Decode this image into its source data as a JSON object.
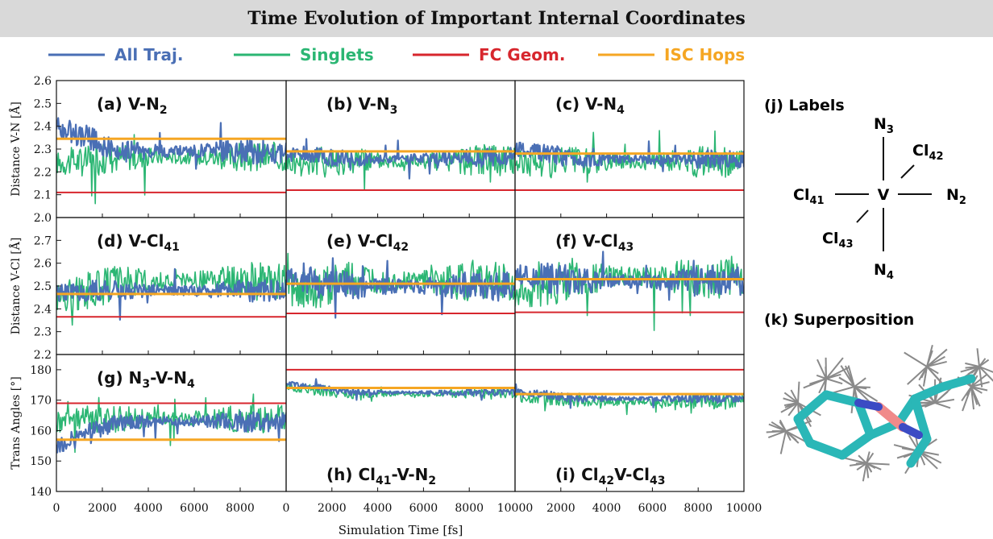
{
  "header": {
    "title": "Time Evolution of Important Internal Coordinates"
  },
  "colors": {
    "all_traj": "#4a6fb5",
    "singlets": "#2bb673",
    "fc_geom": "#d7262d",
    "isc_hops": "#f5a623"
  },
  "legend": {
    "placement": "top",
    "items": [
      {
        "key": "all_traj",
        "label": "All Traj."
      },
      {
        "key": "singlets",
        "label": "Singlets"
      },
      {
        "key": "fc_geom",
        "label": "FC Geom."
      },
      {
        "key": "isc_hops",
        "label": "ISC Hops"
      }
    ]
  },
  "x_axis": {
    "label": "Simulation Time [fs]",
    "ticks_first": [
      "0",
      "2000",
      "4000",
      "6000",
      "8000"
    ],
    "ticks_middle": [
      "0",
      "2000",
      "4000",
      "6000",
      "8000",
      "10000"
    ],
    "ticks_last": [
      "0",
      "2000",
      "4000",
      "6000",
      "8000",
      "10000"
    ],
    "range": [
      0,
      10000
    ]
  },
  "rows": [
    {
      "ylabel": "Distance V-N [Å]",
      "ylim": [
        2.0,
        2.6
      ],
      "ticks": [
        "2.0",
        "2.1",
        "2.2",
        "2.3",
        "2.4",
        "2.5",
        "2.6"
      ]
    },
    {
      "ylabel": "Distance V-Cl [Å]",
      "ylim": [
        2.2,
        2.8
      ],
      "ticks": [
        "2.2",
        "2.3",
        "2.4",
        "2.5",
        "2.6",
        "2.7"
      ]
    },
    {
      "ylabel": "Trans Angles [°]",
      "ylim": [
        140,
        185
      ],
      "ticks": [
        "140",
        "150",
        "160",
        "170",
        "180"
      ]
    }
  ],
  "chart_data": {
    "type": "line",
    "grid": false,
    "panels": [
      {
        "row": 0,
        "col": 0,
        "label": "(a) V-N",
        "sub": "2",
        "fc": 2.11,
        "isc": 2.345,
        "blue": {
          "start": 2.4,
          "decay": 2.29,
          "amp": 0.04
        },
        "green": {
          "start": 2.24,
          "decay": 2.265,
          "amp": 0.05
        }
      },
      {
        "row": 0,
        "col": 1,
        "label": "(b) V-N",
        "sub": "3",
        "fc": 2.12,
        "isc": 2.29,
        "blue": {
          "start": 2.28,
          "decay": 2.26,
          "amp": 0.03
        },
        "green": {
          "start": 2.24,
          "decay": 2.25,
          "amp": 0.05
        }
      },
      {
        "row": 0,
        "col": 2,
        "label": "(c) V-N",
        "sub": "4",
        "fc": 2.12,
        "isc": 2.28,
        "blue": {
          "start": 2.3,
          "decay": 2.255,
          "amp": 0.03
        },
        "green": {
          "start": 2.24,
          "decay": 2.245,
          "amp": 0.05
        }
      },
      {
        "row": 1,
        "col": 0,
        "label": "(d) V-Cl",
        "sub": "41",
        "fc": 2.365,
        "isc": 2.465,
        "blue": {
          "start": 2.47,
          "decay": 2.48,
          "amp": 0.035
        },
        "green": {
          "start": 2.45,
          "decay": 2.52,
          "amp": 0.06
        }
      },
      {
        "row": 1,
        "col": 1,
        "label": "(e) V-Cl",
        "sub": "42",
        "fc": 2.38,
        "isc": 2.51,
        "blue": {
          "start": 2.53,
          "decay": 2.5,
          "amp": 0.05
        },
        "green": {
          "start": 2.48,
          "decay": 2.52,
          "amp": 0.07
        }
      },
      {
        "row": 1,
        "col": 2,
        "label": "(f) V-Cl",
        "sub": "43",
        "fc": 2.385,
        "isc": 2.53,
        "blue": {
          "start": 2.55,
          "decay": 2.52,
          "amp": 0.05
        },
        "green": {
          "start": 2.47,
          "decay": 2.54,
          "amp": 0.07
        }
      },
      {
        "row": 2,
        "col": 0,
        "label": "(g) N",
        "sub": "3",
        "label2": "-V-N",
        "sub2": "4",
        "label_pos": "top",
        "fc": 169,
        "isc": 157,
        "blue": {
          "start": 155,
          "decay": 163,
          "amp": 2.5
        },
        "green": {
          "start": 163,
          "decay": 164,
          "amp": 3.5
        }
      },
      {
        "row": 2,
        "col": 1,
        "label": "(h) Cl",
        "sub": "41",
        "label2": "-V-N",
        "sub2": "2",
        "label_pos": "bottom",
        "fc": 180,
        "isc": 174,
        "blue": {
          "start": 175.5,
          "decay": 172.5,
          "amp": 0.8
        },
        "green": {
          "start": 174.5,
          "decay": 172,
          "amp": 1.3
        }
      },
      {
        "row": 2,
        "col": 2,
        "label": "(i) Cl",
        "sub": "42",
        "label2": "V-Cl",
        "sub2": "43",
        "label_pos": "bottom",
        "fc": 180,
        "isc": 172,
        "blue": {
          "start": 173,
          "decay": 170.5,
          "amp": 1.0
        },
        "green": {
          "start": 171.5,
          "decay": 169.5,
          "amp": 1.8
        }
      }
    ]
  },
  "side_panel": {
    "labels_title": "(j) Labels",
    "center": "V",
    "n3": "N",
    "n3_sub": "3",
    "n4": "N",
    "n4_sub": "4",
    "n2": "N",
    "n2_sub": "2",
    "cl41": "Cl",
    "cl41_sub": "41",
    "cl42": "Cl",
    "cl42_sub": "42",
    "cl43": "Cl",
    "cl43_sub": "43",
    "superposition_title": "(k) Superposition"
  }
}
